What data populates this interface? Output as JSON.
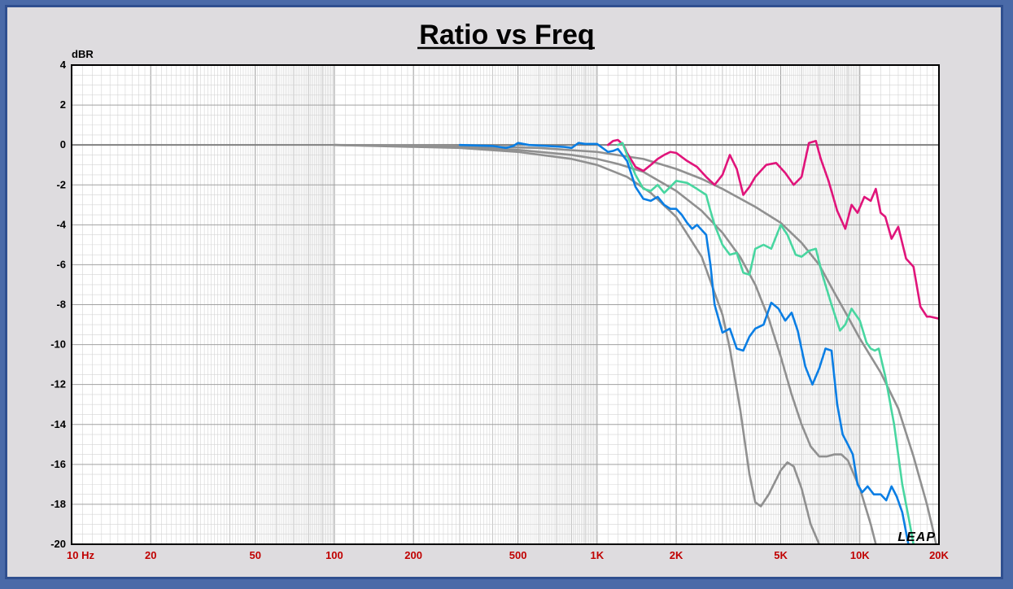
{
  "chart_data": {
    "type": "line",
    "title": "Ratio vs Freq",
    "ylabel": "dBR",
    "xscale": "log",
    "xlim": [
      10,
      20000
    ],
    "ylim": [
      -20,
      4
    ],
    "grid": true,
    "x_ticks": [
      {
        "value": 10,
        "label": "10  Hz"
      },
      {
        "value": 20,
        "label": "20"
      },
      {
        "value": 50,
        "label": "50"
      },
      {
        "value": 100,
        "label": "100"
      },
      {
        "value": 200,
        "label": "200"
      },
      {
        "value": 500,
        "label": "500"
      },
      {
        "value": 1000,
        "label": "1K"
      },
      {
        "value": 2000,
        "label": "2K"
      },
      {
        "value": 5000,
        "label": "5K"
      },
      {
        "value": 10000,
        "label": "10K"
      },
      {
        "value": 20000,
        "label": "20K"
      }
    ],
    "y_ticks": [
      4,
      2,
      0,
      -2,
      -4,
      -6,
      -8,
      -10,
      -12,
      -14,
      -16,
      -18,
      -20
    ],
    "series": [
      {
        "color": "#909090",
        "points": [
          [
            100,
            0
          ],
          [
            300,
            -0.05
          ],
          [
            600,
            -0.15
          ],
          [
            1000,
            -0.35
          ],
          [
            1500,
            -0.7
          ],
          [
            2000,
            -1.2
          ],
          [
            2500,
            -1.7
          ],
          [
            3000,
            -2.2
          ],
          [
            4000,
            -3.1
          ],
          [
            5000,
            -3.9
          ],
          [
            6000,
            -4.9
          ],
          [
            7000,
            -6
          ],
          [
            8000,
            -7.4
          ],
          [
            9000,
            -8.6
          ],
          [
            10000,
            -9.7
          ],
          [
            12000,
            -11.4
          ],
          [
            14000,
            -13.2
          ],
          [
            16000,
            -15.6
          ],
          [
            18000,
            -18
          ],
          [
            19000,
            -19.3
          ],
          [
            19500,
            -20
          ]
        ]
      },
      {
        "color": "#909090",
        "points": [
          [
            100,
            0
          ],
          [
            300,
            -0.1
          ],
          [
            500,
            -0.25
          ],
          [
            800,
            -0.5
          ],
          [
            1000,
            -0.7
          ],
          [
            1200,
            -0.95
          ],
          [
            1500,
            -1.35
          ],
          [
            2000,
            -2.3
          ],
          [
            2500,
            -3.3
          ],
          [
            3000,
            -4.4
          ],
          [
            3500,
            -5.6
          ],
          [
            4000,
            -7
          ],
          [
            4500,
            -8.7
          ],
          [
            5000,
            -10.6
          ],
          [
            5500,
            -12.5
          ],
          [
            6000,
            -14
          ],
          [
            6500,
            -15.1
          ],
          [
            7000,
            -15.6
          ],
          [
            7500,
            -15.6
          ],
          [
            8000,
            -15.5
          ],
          [
            8500,
            -15.5
          ],
          [
            9000,
            -15.8
          ],
          [
            10000,
            -17.2
          ],
          [
            11000,
            -19
          ],
          [
            11500,
            -20
          ]
        ]
      },
      {
        "color": "#909090",
        "points": [
          [
            100,
            0
          ],
          [
            300,
            -0.15
          ],
          [
            500,
            -0.35
          ],
          [
            800,
            -0.7
          ],
          [
            1000,
            -1
          ],
          [
            1300,
            -1.6
          ],
          [
            1600,
            -2.4
          ],
          [
            2000,
            -3.6
          ],
          [
            2500,
            -5.6
          ],
          [
            3000,
            -8.5
          ],
          [
            3200,
            -10.2
          ],
          [
            3500,
            -13.2
          ],
          [
            3800,
            -16.5
          ],
          [
            4000,
            -17.9
          ],
          [
            4200,
            -18.1
          ],
          [
            4500,
            -17.5
          ],
          [
            5000,
            -16.3
          ],
          [
            5300,
            -15.9
          ],
          [
            5600,
            -16.1
          ],
          [
            6000,
            -17.2
          ],
          [
            6500,
            -19
          ],
          [
            7000,
            -20
          ]
        ]
      },
      {
        "color": "#e0147a",
        "points": [
          [
            1100,
            0
          ],
          [
            1150,
            0.2
          ],
          [
            1200,
            0.25
          ],
          [
            1260,
            0
          ],
          [
            1300,
            -0.4
          ],
          [
            1400,
            -1.1
          ],
          [
            1500,
            -1.3
          ],
          [
            1600,
            -1
          ],
          [
            1700,
            -0.7
          ],
          [
            1800,
            -0.5
          ],
          [
            1900,
            -0.35
          ],
          [
            2000,
            -0.4
          ],
          [
            2200,
            -0.8
          ],
          [
            2400,
            -1.1
          ],
          [
            2600,
            -1.6
          ],
          [
            2800,
            -2
          ],
          [
            3000,
            -1.5
          ],
          [
            3200,
            -0.5
          ],
          [
            3400,
            -1.2
          ],
          [
            3600,
            -2.5
          ],
          [
            3800,
            -2.1
          ],
          [
            4000,
            -1.6
          ],
          [
            4400,
            -1
          ],
          [
            4800,
            -0.9
          ],
          [
            5200,
            -1.4
          ],
          [
            5600,
            -2
          ],
          [
            6000,
            -1.6
          ],
          [
            6400,
            0.1
          ],
          [
            6800,
            0.2
          ],
          [
            7100,
            -0.7
          ],
          [
            7600,
            -1.8
          ],
          [
            8200,
            -3.3
          ],
          [
            8800,
            -4.2
          ],
          [
            9300,
            -3
          ],
          [
            9800,
            -3.4
          ],
          [
            10400,
            -2.6
          ],
          [
            11000,
            -2.8
          ],
          [
            11500,
            -2.2
          ],
          [
            12000,
            -3.4
          ],
          [
            12500,
            -3.6
          ],
          [
            13200,
            -4.7
          ],
          [
            14000,
            -4.1
          ],
          [
            15000,
            -5.7
          ],
          [
            16000,
            -6.1
          ],
          [
            17000,
            -8.1
          ],
          [
            18000,
            -8.6
          ],
          [
            18500,
            -8.6
          ],
          [
            20000,
            -8.7
          ]
        ]
      },
      {
        "color": "#48d6a0",
        "points": [
          [
            1200,
            0
          ],
          [
            1250,
            0.1
          ],
          [
            1300,
            -0.5
          ],
          [
            1400,
            -1.5
          ],
          [
            1500,
            -2.2
          ],
          [
            1600,
            -2.3
          ],
          [
            1700,
            -2.0
          ],
          [
            1800,
            -2.4
          ],
          [
            1900,
            -2.1
          ],
          [
            2000,
            -1.8
          ],
          [
            2200,
            -1.9
          ],
          [
            2400,
            -2.2
          ],
          [
            2600,
            -2.5
          ],
          [
            2700,
            -3.3
          ],
          [
            2800,
            -4.0
          ],
          [
            3000,
            -5.0
          ],
          [
            3200,
            -5.5
          ],
          [
            3400,
            -5.4
          ],
          [
            3600,
            -6.4
          ],
          [
            3800,
            -6.5
          ],
          [
            4000,
            -5.2
          ],
          [
            4300,
            -5.0
          ],
          [
            4600,
            -5.2
          ],
          [
            5000,
            -4.0
          ],
          [
            5300,
            -4.5
          ],
          [
            5700,
            -5.5
          ],
          [
            6000,
            -5.6
          ],
          [
            6400,
            -5.3
          ],
          [
            6800,
            -5.2
          ],
          [
            7200,
            -6.5
          ],
          [
            7800,
            -8
          ],
          [
            8400,
            -9.3
          ],
          [
            8800,
            -9.0
          ],
          [
            9300,
            -8.2
          ],
          [
            10000,
            -8.8
          ],
          [
            10600,
            -9.9
          ],
          [
            11000,
            -10.2
          ],
          [
            11400,
            -10.3
          ],
          [
            11800,
            -10.2
          ],
          [
            12500,
            -11.6
          ],
          [
            13500,
            -14
          ],
          [
            14500,
            -17
          ],
          [
            15500,
            -19
          ],
          [
            16000,
            -20
          ]
        ]
      },
      {
        "color": "#0a7ee4",
        "points": [
          [
            300,
            0
          ],
          [
            400,
            -0.05
          ],
          [
            450,
            -0.15
          ],
          [
            480,
            -0.05
          ],
          [
            500,
            0.1
          ],
          [
            550,
            0
          ],
          [
            650,
            -0.05
          ],
          [
            750,
            -0.1
          ],
          [
            800,
            -0.15
          ],
          [
            850,
            0.1
          ],
          [
            900,
            0.05
          ],
          [
            1000,
            0.05
          ],
          [
            1100,
            -0.35
          ],
          [
            1150,
            -0.3
          ],
          [
            1200,
            -0.2
          ],
          [
            1300,
            -0.8
          ],
          [
            1400,
            -2.1
          ],
          [
            1500,
            -2.7
          ],
          [
            1600,
            -2.8
          ],
          [
            1700,
            -2.6
          ],
          [
            1800,
            -3
          ],
          [
            1900,
            -3.2
          ],
          [
            2000,
            -3.2
          ],
          [
            2100,
            -3.5
          ],
          [
            2200,
            -3.9
          ],
          [
            2300,
            -4.2
          ],
          [
            2400,
            -4.0
          ],
          [
            2600,
            -4.5
          ],
          [
            2700,
            -6.0
          ],
          [
            2800,
            -8
          ],
          [
            3000,
            -9.4
          ],
          [
            3200,
            -9.2
          ],
          [
            3400,
            -10.2
          ],
          [
            3600,
            -10.3
          ],
          [
            3800,
            -9.6
          ],
          [
            4000,
            -9.2
          ],
          [
            4300,
            -9.0
          ],
          [
            4600,
            -7.9
          ],
          [
            4900,
            -8.2
          ],
          [
            5200,
            -8.8
          ],
          [
            5500,
            -8.4
          ],
          [
            5800,
            -9.3
          ],
          [
            6200,
            -11.1
          ],
          [
            6600,
            -12.0
          ],
          [
            7000,
            -11.2
          ],
          [
            7400,
            -10.2
          ],
          [
            7800,
            -10.3
          ],
          [
            8200,
            -13
          ],
          [
            8600,
            -14.5
          ],
          [
            9000,
            -15
          ],
          [
            9400,
            -15.5
          ],
          [
            9800,
            -17
          ],
          [
            10200,
            -17.4
          ],
          [
            10700,
            -17.1
          ],
          [
            11300,
            -17.5
          ],
          [
            12000,
            -17.5
          ],
          [
            12600,
            -17.8
          ],
          [
            13200,
            -17.1
          ],
          [
            13800,
            -17.6
          ],
          [
            14500,
            -18.4
          ],
          [
            15300,
            -20
          ]
        ]
      }
    ]
  },
  "watermark": "LEAP"
}
